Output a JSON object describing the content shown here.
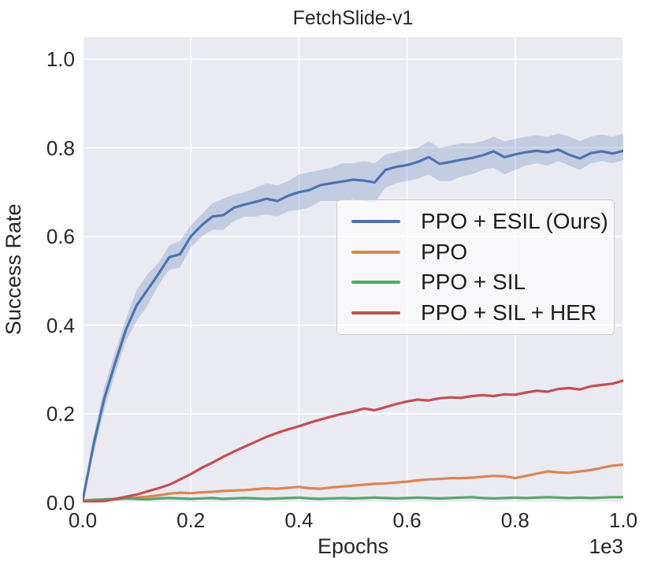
{
  "chart_data": {
    "type": "line",
    "title": "FetchSlide-v1",
    "xlabel": "Epochs",
    "ylabel": "Success Rate",
    "x_offset_text": "1e3",
    "xlim": [
      0.0,
      1.0
    ],
    "ylim": [
      0.0,
      1.05
    ],
    "grid": true,
    "legend_position": "center right",
    "plot_background_color": "#EAEAF2",
    "gridline_color": "#FFFFFF",
    "band_color": "#4C72B0",
    "band_opacity": 0.25,
    "xticks": [
      0.0,
      0.2,
      0.4,
      0.6,
      0.8,
      1.0
    ],
    "xtick_labels": [
      "0.0",
      "0.2",
      "0.4",
      "0.6",
      "0.8",
      "1.0"
    ],
    "yticks": [
      0.0,
      0.2,
      0.4,
      0.6,
      0.8,
      1.0
    ],
    "ytick_labels": [
      "0.0",
      "0.2",
      "0.4",
      "0.6",
      "0.8",
      "1.0"
    ],
    "x": [
      0,
      0.02,
      0.04,
      0.06,
      0.08,
      0.1,
      0.12,
      0.14,
      0.16,
      0.18,
      0.2,
      0.22,
      0.24,
      0.26,
      0.28,
      0.3,
      0.32,
      0.34,
      0.36,
      0.38,
      0.4,
      0.42,
      0.44,
      0.46,
      0.48,
      0.5,
      0.52,
      0.54,
      0.56,
      0.58,
      0.6,
      0.62,
      0.64,
      0.66,
      0.68,
      0.7,
      0.72,
      0.74,
      0.76,
      0.78,
      0.8,
      0.82,
      0.84,
      0.86,
      0.88,
      0.9,
      0.92,
      0.94,
      0.96,
      0.98,
      1.0
    ],
    "series": [
      {
        "name": "PPO + ESIL (Ours)",
        "color": "#4C72B0",
        "values": [
          0.005,
          0.13,
          0.235,
          0.315,
          0.39,
          0.445,
          0.48,
          0.515,
          0.553,
          0.56,
          0.6,
          0.625,
          0.645,
          0.648,
          0.665,
          0.672,
          0.678,
          0.685,
          0.68,
          0.692,
          0.7,
          0.705,
          0.716,
          0.72,
          0.724,
          0.728,
          0.726,
          0.722,
          0.75,
          0.757,
          0.761,
          0.768,
          0.779,
          0.764,
          0.768,
          0.773,
          0.777,
          0.783,
          0.792,
          0.779,
          0.785,
          0.79,
          0.793,
          0.79,
          0.796,
          0.784,
          0.776,
          0.788,
          0.792,
          0.787,
          0.793
        ],
        "band_low": [
          0.0,
          0.11,
          0.21,
          0.29,
          0.365,
          0.41,
          0.445,
          0.49,
          0.525,
          0.53,
          0.575,
          0.6,
          0.615,
          0.615,
          0.635,
          0.645,
          0.645,
          0.65,
          0.645,
          0.657,
          0.66,
          0.665,
          0.68,
          0.68,
          0.68,
          0.685,
          0.68,
          0.675,
          0.71,
          0.72,
          0.725,
          0.73,
          0.74,
          0.725,
          0.725,
          0.735,
          0.74,
          0.75,
          0.755,
          0.74,
          0.75,
          0.76,
          0.765,
          0.76,
          0.77,
          0.76,
          0.75,
          0.765,
          0.77,
          0.765,
          0.772
        ],
        "band_high": [
          0.01,
          0.15,
          0.26,
          0.34,
          0.415,
          0.48,
          0.515,
          0.54,
          0.58,
          0.59,
          0.625,
          0.65,
          0.675,
          0.685,
          0.695,
          0.7,
          0.71,
          0.72,
          0.715,
          0.725,
          0.74,
          0.745,
          0.75,
          0.755,
          0.765,
          0.765,
          0.77,
          0.765,
          0.785,
          0.79,
          0.795,
          0.8,
          0.815,
          0.8,
          0.805,
          0.81,
          0.81,
          0.815,
          0.825,
          0.815,
          0.82,
          0.825,
          0.828,
          0.825,
          0.832,
          0.825,
          0.815,
          0.825,
          0.83,
          0.825,
          0.832
        ]
      },
      {
        "name": "PPO",
        "color": "#DD8452",
        "values": [
          0.004,
          0.005,
          0.006,
          0.007,
          0.009,
          0.011,
          0.013,
          0.016,
          0.02,
          0.022,
          0.021,
          0.023,
          0.024,
          0.026,
          0.027,
          0.028,
          0.03,
          0.032,
          0.031,
          0.033,
          0.035,
          0.032,
          0.031,
          0.034,
          0.036,
          0.038,
          0.04,
          0.042,
          0.043,
          0.045,
          0.047,
          0.05,
          0.052,
          0.053,
          0.055,
          0.055,
          0.056,
          0.058,
          0.06,
          0.059,
          0.055,
          0.06,
          0.065,
          0.07,
          0.068,
          0.067,
          0.07,
          0.073,
          0.078,
          0.083,
          0.085
        ]
      },
      {
        "name": "PPO + SIL",
        "color": "#55A868",
        "values": [
          0.004,
          0.006,
          0.007,
          0.008,
          0.009,
          0.008,
          0.007,
          0.009,
          0.01,
          0.009,
          0.008,
          0.009,
          0.01,
          0.008,
          0.009,
          0.01,
          0.009,
          0.008,
          0.009,
          0.01,
          0.011,
          0.009,
          0.008,
          0.009,
          0.01,
          0.009,
          0.01,
          0.011,
          0.01,
          0.009,
          0.01,
          0.011,
          0.01,
          0.009,
          0.01,
          0.011,
          0.012,
          0.01,
          0.009,
          0.01,
          0.011,
          0.01,
          0.011,
          0.012,
          0.011,
          0.01,
          0.011,
          0.01,
          0.011,
          0.012,
          0.012
        ]
      },
      {
        "name": "PPO + SIL + HER",
        "color": "#C44E52",
        "values": [
          0.002,
          0.002,
          0.003,
          0.008,
          0.013,
          0.018,
          0.025,
          0.032,
          0.04,
          0.052,
          0.064,
          0.078,
          0.09,
          0.103,
          0.115,
          0.126,
          0.137,
          0.148,
          0.157,
          0.165,
          0.172,
          0.18,
          0.187,
          0.194,
          0.2,
          0.205,
          0.212,
          0.208,
          0.215,
          0.222,
          0.228,
          0.232,
          0.23,
          0.235,
          0.237,
          0.236,
          0.24,
          0.242,
          0.24,
          0.244,
          0.243,
          0.248,
          0.252,
          0.25,
          0.256,
          0.258,
          0.255,
          0.262,
          0.265,
          0.268,
          0.275
        ]
      }
    ]
  }
}
